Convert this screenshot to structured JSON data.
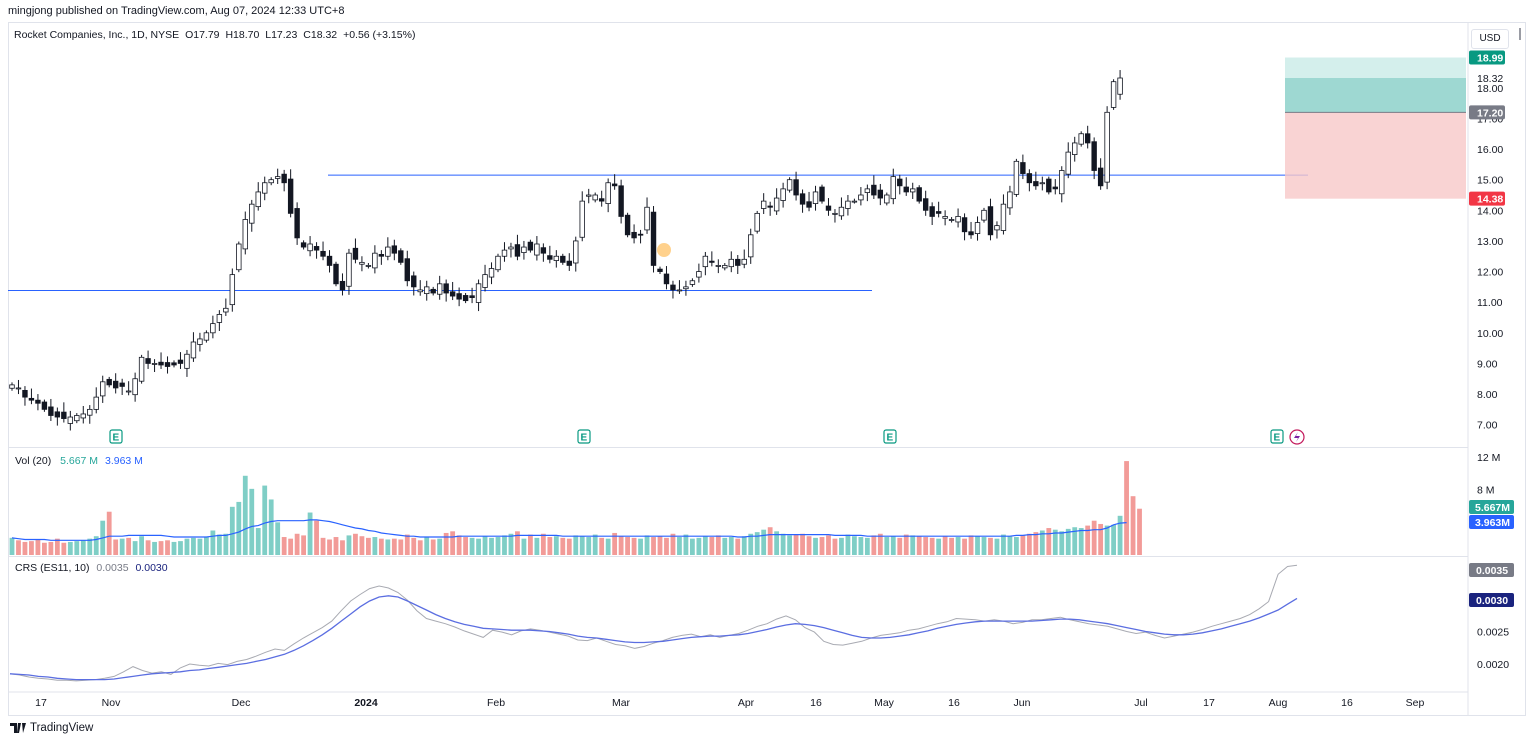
{
  "header": {
    "publisher": "mingjong published on TradingView.com, Aug 07, 2024 12:33 UTC+8"
  },
  "legend": {
    "symbol": "Rocket Companies, Inc., 1D, NYSE",
    "open": "O17.79",
    "high": "H18.70",
    "low": "L17.23",
    "close": "C18.32",
    "change": "+0.56 (+3.15%)"
  },
  "currency": "USD",
  "volume_legend": {
    "label": "Vol (20)",
    "value": "5.667 M",
    "ma": "3.963 M"
  },
  "crs_legend": {
    "label": "CRS (ES11, 10)",
    "value": "0.0035",
    "ma": "0.0030"
  },
  "footer": {
    "brand": "TradingView"
  },
  "colors": {
    "up": "#26a69a",
    "down": "#ef5350",
    "line": "#2962ff",
    "ma": "#5b6ee1",
    "stop": "#f7c8c8",
    "target": "#9ed8d2"
  },
  "chart_data": [
    {
      "type": "candlestick",
      "title": "Rocket Companies, Inc., 1D, NYSE",
      "ylim": [
        6.5,
        19.3
      ],
      "y_ticks": [
        "7.00",
        "8.00",
        "9.00",
        "10.00",
        "11.00",
        "12.00",
        "13.00",
        "14.00",
        "15.00",
        "16.00",
        "17.00",
        "18.00"
      ],
      "x_ticks": [
        "17",
        "Nov",
        "Dec",
        "2024",
        "Feb",
        "Mar",
        "Apr",
        "16",
        "May",
        "16",
        "Jun",
        "Jul",
        "17",
        "Aug",
        "16",
        "Sep"
      ],
      "price_labels": {
        "target": "18.99",
        "last": "18.32",
        "entry": "17.20",
        "stop": "14.38"
      },
      "horizontal_lines": [
        11.38,
        15.15
      ],
      "closes": [
        8.3,
        8.2,
        7.9,
        7.8,
        7.7,
        7.5,
        7.3,
        7.25,
        7.2,
        7.25,
        7.3,
        7.35,
        7.5,
        7.9,
        8.4,
        8.3,
        8.2,
        8.25,
        8.1,
        8.5,
        9.2,
        9.0,
        9.0,
        8.95,
        8.9,
        8.95,
        9.0,
        9.3,
        9.7,
        9.8,
        10.0,
        10.3,
        10.6,
        10.8,
        11.9,
        12.9,
        13.7,
        14.2,
        14.6,
        14.9,
        15.0,
        15.1,
        14.9,
        13.9,
        13.1,
        12.8,
        12.9,
        12.7,
        12.5,
        12.2,
        11.6,
        11.4,
        12.6,
        12.4,
        12.3,
        12.2,
        12.6,
        12.5,
        12.8,
        12.6,
        12.3,
        11.7,
        11.5,
        11.4,
        11.5,
        11.3,
        11.6,
        11.3,
        11.2,
        11.1,
        11.05,
        11.15,
        11.6,
        11.9,
        12.1,
        12.5,
        12.7,
        12.8,
        12.5,
        12.8,
        12.7,
        12.9,
        12.6,
        12.4,
        12.5,
        12.3,
        12.2,
        13.0,
        14.3,
        14.5,
        14.5,
        14.3,
        14.9,
        14.8,
        13.8,
        13.2,
        13.1,
        13.2,
        14.1,
        12.2,
        12.0,
        11.6,
        11.4,
        11.4,
        11.5,
        11.7,
        12.0,
        12.5,
        12.3,
        12.2,
        12.2,
        12.4,
        12.2,
        12.4,
        13.2,
        13.9,
        14.3,
        14.1,
        14.4,
        14.7,
        15.0,
        14.5,
        14.2,
        14.1,
        14.6,
        14.3,
        14.0,
        13.9,
        14.1,
        14.3,
        14.3,
        14.5,
        14.7,
        14.5,
        14.4,
        14.5,
        15.1,
        14.8,
        14.6,
        14.7,
        14.3,
        14.0,
        13.8,
        13.9,
        13.8,
        13.7,
        13.8,
        13.3,
        13.2,
        13.6,
        14.0,
        13.2,
        13.5,
        14.2,
        14.6,
        15.6,
        15.2,
        14.9,
        14.8,
        14.9,
        14.6,
        14.7,
        15.3,
        15.9,
        16.2,
        16.5,
        16.2,
        15.3,
        14.8,
        17.2,
        18.2,
        18.32
      ],
      "last_close": 18.32
    },
    {
      "type": "bar",
      "title": "Vol (20)",
      "ylim": [
        0,
        12
      ],
      "y_ticks": [
        "8 M",
        "12 M"
      ],
      "value_label": "5.667M",
      "ma_label": "3.963M",
      "values": [
        2.1,
        1.8,
        1.6,
        1.7,
        1.9,
        1.5,
        1.6,
        2.0,
        1.5,
        1.6,
        1.7,
        1.8,
        2.0,
        2.3,
        4.2,
        5.3,
        1.9,
        2.0,
        2.1,
        1.7,
        2.3,
        1.8,
        1.6,
        1.7,
        1.8,
        1.6,
        1.7,
        2.0,
        2.1,
        2.0,
        2.2,
        3.0,
        2.5,
        2.6,
        5.9,
        6.5,
        9.7,
        8.1,
        3.3,
        8.5,
        6.8,
        4.0,
        2.2,
        2.0,
        2.6,
        2.4,
        5.2,
        4.2,
        2.1,
        1.9,
        2.2,
        1.8,
        2.4,
        2.6,
        2.3,
        2.1,
        2.2,
        2.0,
        1.9,
        2.0,
        1.9,
        2.5,
        2.1,
        1.8,
        2.2,
        1.9,
        2.0,
        2.7,
        2.9,
        2.4,
        2.2,
        2.1,
        2.0,
        2.3,
        2.1,
        2.2,
        2.4,
        2.6,
        2.9,
        2.0,
        2.5,
        2.1,
        2.6,
        2.2,
        2.3,
        2.1,
        2.0,
        2.4,
        2.3,
        2.2,
        2.5,
        2.1,
        2.0,
        2.7,
        2.3,
        2.2,
        2.1,
        2.0,
        2.4,
        2.2,
        2.3,
        2.1,
        2.6,
        2.2,
        2.5,
        2.0,
        2.1,
        2.3,
        2.2,
        2.4,
        2.1,
        2.2,
        2.0,
        2.3,
        2.6,
        2.8,
        3.1,
        3.4,
        2.9,
        2.6,
        2.4,
        2.5,
        2.6,
        2.3,
        2.1,
        2.2,
        2.4,
        2.0,
        2.1,
        2.5,
        2.3,
        2.2,
        2.1,
        2.4,
        2.6,
        2.2,
        2.3,
        2.1,
        2.5,
        2.4,
        2.3,
        2.2,
        2.1,
        2.0,
        2.3,
        2.1,
        2.2,
        2.0,
        2.4,
        2.3,
        2.2,
        2.1,
        2.0,
        2.5,
        2.3,
        2.2,
        2.4,
        2.6,
        2.8,
        3.0,
        3.3,
        3.1,
        2.9,
        3.2,
        3.4,
        3.3,
        3.6,
        4.2,
        3.8,
        3.6,
        3.7,
        4.8,
        11.5,
        7.2,
        5.667
      ],
      "ma_values": [
        2.1,
        2.0,
        1.9,
        1.9,
        1.9,
        1.9,
        1.8,
        1.8,
        1.8,
        1.8,
        1.8,
        1.8,
        1.8,
        1.9,
        2.1,
        2.3,
        2.3,
        2.3,
        2.4,
        2.4,
        2.4,
        2.4,
        2.4,
        2.4,
        2.3,
        2.2,
        2.2,
        2.2,
        2.2,
        2.2,
        2.2,
        2.3,
        2.4,
        2.4,
        2.6,
        2.8,
        3.2,
        3.5,
        3.6,
        3.9,
        4.1,
        4.2,
        4.2,
        4.2,
        4.2,
        4.2,
        4.3,
        4.3,
        4.2,
        4.1,
        3.9,
        3.7,
        3.5,
        3.3,
        3.2,
        3.0,
        2.9,
        2.7,
        2.6,
        2.5,
        2.4,
        2.3,
        2.3,
        2.2,
        2.2,
        2.2,
        2.2,
        2.2,
        2.2,
        2.3,
        2.3,
        2.3,
        2.3,
        2.3,
        2.3,
        2.3,
        2.3,
        2.3,
        2.4,
        2.4,
        2.4,
        2.4,
        2.4,
        2.4,
        2.4,
        2.3,
        2.3,
        2.3,
        2.3,
        2.3,
        2.3,
        2.3,
        2.3,
        2.3,
        2.3,
        2.3,
        2.3,
        2.3,
        2.3,
        2.3,
        2.3,
        2.3,
        2.3,
        2.3,
        2.3,
        2.3,
        2.3,
        2.3,
        2.3,
        2.3,
        2.3,
        2.3,
        2.2,
        2.2,
        2.3,
        2.3,
        2.4,
        2.5,
        2.5,
        2.5,
        2.5,
        2.5,
        2.5,
        2.5,
        2.5,
        2.5,
        2.5,
        2.4,
        2.4,
        2.4,
        2.4,
        2.4,
        2.3,
        2.3,
        2.3,
        2.3,
        2.3,
        2.3,
        2.3,
        2.3,
        2.3,
        2.3,
        2.3,
        2.3,
        2.3,
        2.3,
        2.3,
        2.3,
        2.3,
        2.3,
        2.3,
        2.3,
        2.3,
        2.3,
        2.3,
        2.4,
        2.4,
        2.5,
        2.5,
        2.6,
        2.6,
        2.7,
        2.7,
        2.8,
        2.9,
        3.0,
        3.0,
        3.1,
        3.1,
        3.3,
        3.7,
        3.9,
        3.963
      ]
    },
    {
      "type": "line",
      "title": "CRS (ES11, 10)",
      "ylim": [
        0.0016,
        0.0036
      ],
      "y_ticks": [
        "0.0020",
        "0.0025"
      ],
      "value_label": "0.0035",
      "ma_label": "0.0030",
      "series": [
        {
          "values": [
            0.00185,
            0.00183,
            0.0018,
            0.00178,
            0.00177,
            0.00175,
            0.00175,
            0.00174,
            0.00175,
            0.00176,
            0.00178,
            0.00181,
            0.00188,
            0.00196,
            0.0019,
            0.00186,
            0.00188,
            0.00184,
            0.00194,
            0.002,
            0.00198,
            0.00197,
            0.00201,
            0.00199,
            0.00204,
            0.00207,
            0.00212,
            0.00218,
            0.00223,
            0.00221,
            0.00231,
            0.0024,
            0.00248,
            0.00256,
            0.00266,
            0.00282,
            0.00297,
            0.00307,
            0.00316,
            0.0032,
            0.00317,
            0.0031,
            0.00298,
            0.00282,
            0.0027,
            0.00266,
            0.00262,
            0.00257,
            0.00251,
            0.00246,
            0.00241,
            0.00252,
            0.00249,
            0.00245,
            0.00251,
            0.00254,
            0.00252,
            0.00249,
            0.00246,
            0.00243,
            0.00237,
            0.00236,
            0.0024,
            0.00235,
            0.0023,
            0.00228,
            0.00224,
            0.00227,
            0.00232,
            0.00236,
            0.00241,
            0.00244,
            0.00246,
            0.00242,
            0.00245,
            0.00241,
            0.00244,
            0.00247,
            0.00252,
            0.00258,
            0.00262,
            0.00269,
            0.00274,
            0.00268,
            0.00256,
            0.00249,
            0.00235,
            0.0023,
            0.00229,
            0.00232,
            0.00235,
            0.0024,
            0.00244,
            0.00246,
            0.00248,
            0.00252,
            0.00254,
            0.00258,
            0.00262,
            0.00265,
            0.0027,
            0.00269,
            0.00268,
            0.00266,
            0.00268,
            0.00266,
            0.00262,
            0.00264,
            0.00268,
            0.00268,
            0.0027,
            0.00272,
            0.00268,
            0.00265,
            0.00262,
            0.0026,
            0.00258,
            0.00254,
            0.0025,
            0.00247,
            0.00249,
            0.00244,
            0.0024,
            0.00243,
            0.00246,
            0.00249,
            0.00253,
            0.00258,
            0.00262,
            0.00266,
            0.0027,
            0.00276,
            0.00285,
            0.00296,
            0.00338,
            0.0035,
            0.00352
          ]
        },
        {
          "values": [
            0.00185,
            0.00184,
            0.00183,
            0.00181,
            0.0018,
            0.00178,
            0.00177,
            0.00176,
            0.00176,
            0.00176,
            0.00176,
            0.00177,
            0.00179,
            0.00181,
            0.00183,
            0.00185,
            0.00186,
            0.00187,
            0.00188,
            0.0019,
            0.00191,
            0.00193,
            0.00195,
            0.00197,
            0.00199,
            0.00201,
            0.00204,
            0.00207,
            0.00211,
            0.00215,
            0.00221,
            0.00228,
            0.00236,
            0.00245,
            0.00255,
            0.00266,
            0.00277,
            0.00288,
            0.00297,
            0.00303,
            0.00305,
            0.00303,
            0.00297,
            0.0029,
            0.00283,
            0.00276,
            0.0027,
            0.00265,
            0.00261,
            0.00258,
            0.00255,
            0.00254,
            0.00253,
            0.00252,
            0.00252,
            0.00252,
            0.00251,
            0.0025,
            0.00248,
            0.00246,
            0.00243,
            0.00241,
            0.0024,
            0.00238,
            0.00236,
            0.00234,
            0.00233,
            0.00233,
            0.00234,
            0.00235,
            0.00237,
            0.00239,
            0.00241,
            0.00242,
            0.00243,
            0.00243,
            0.00244,
            0.00245,
            0.00247,
            0.0025,
            0.00253,
            0.00257,
            0.0026,
            0.00262,
            0.00261,
            0.00259,
            0.00256,
            0.00252,
            0.00248,
            0.00244,
            0.00241,
            0.0024,
            0.0024,
            0.00241,
            0.00243,
            0.00245,
            0.00248,
            0.00251,
            0.00255,
            0.00258,
            0.00261,
            0.00263,
            0.00265,
            0.00266,
            0.00266,
            0.00266,
            0.00266,
            0.00266,
            0.00266,
            0.00267,
            0.00268,
            0.00269,
            0.00269,
            0.00268,
            0.00266,
            0.00264,
            0.00262,
            0.00259,
            0.00256,
            0.00253,
            0.0025,
            0.00248,
            0.00246,
            0.00245,
            0.00245,
            0.00246,
            0.00248,
            0.00251,
            0.00254,
            0.00258,
            0.00262,
            0.00266,
            0.00271,
            0.00277,
            0.00283,
            0.00292,
            0.00301
          ]
        }
      ]
    }
  ]
}
